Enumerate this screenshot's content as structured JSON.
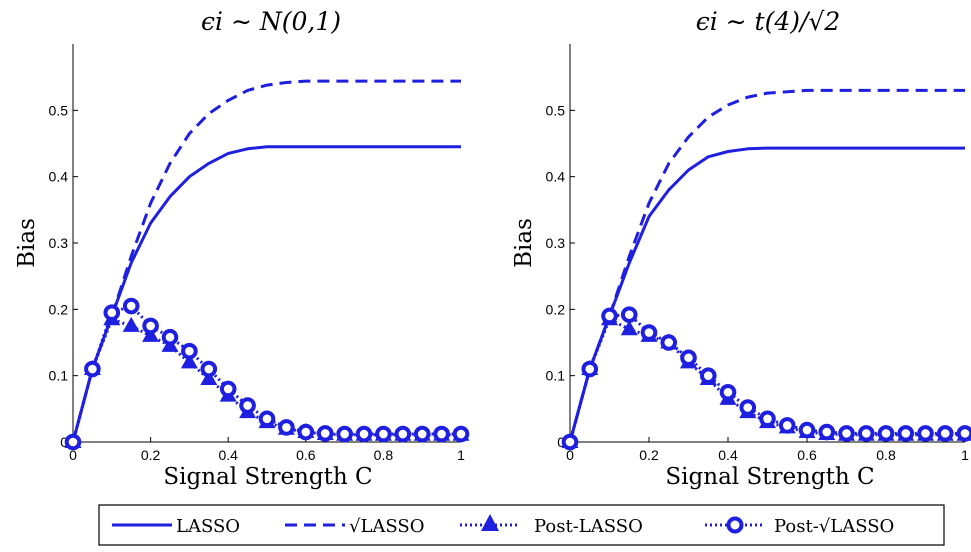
{
  "chart_data": [
    {
      "type": "line",
      "title": "ϵi ∼ N(0,1)",
      "xlabel": "Signal Strength C",
      "ylabel": "Bias",
      "xlim": [
        0,
        1
      ],
      "ylim": [
        0,
        0.6
      ],
      "x_ticks": [
        0,
        0.2,
        0.4,
        0.6,
        0.8,
        1
      ],
      "y_ticks": [
        0,
        0.1,
        0.2,
        0.3,
        0.4,
        0.5
      ],
      "x": [
        0,
        0.05,
        0.1,
        0.15,
        0.2,
        0.25,
        0.3,
        0.35,
        0.4,
        0.45,
        0.5,
        0.55,
        0.6,
        0.65,
        0.7,
        0.75,
        0.8,
        0.85,
        0.9,
        0.95,
        1
      ],
      "series": [
        {
          "name": "LASSO",
          "values": [
            0,
            0.11,
            0.19,
            0.27,
            0.33,
            0.37,
            0.4,
            0.42,
            0.435,
            0.442,
            0.445,
            0.445,
            0.445,
            0.445,
            0.445,
            0.445,
            0.445,
            0.445,
            0.445,
            0.445,
            0.445
          ]
        },
        {
          "name": "√LASSO",
          "values": [
            0,
            0.11,
            0.19,
            0.28,
            0.36,
            0.42,
            0.465,
            0.495,
            0.515,
            0.53,
            0.538,
            0.542,
            0.544,
            0.544,
            0.544,
            0.544,
            0.544,
            0.544,
            0.544,
            0.544,
            0.544
          ]
        },
        {
          "name": "Post-LASSO",
          "values": [
            0,
            0.11,
            0.185,
            0.175,
            0.16,
            0.145,
            0.12,
            0.095,
            0.07,
            0.045,
            0.03,
            0.02,
            0.015,
            0.012,
            0.011,
            0.011,
            0.011,
            0.011,
            0.011,
            0.011,
            0.011
          ]
        },
        {
          "name": "Post-√LASSO",
          "values": [
            0,
            0.11,
            0.195,
            0.205,
            0.175,
            0.158,
            0.137,
            0.11,
            0.08,
            0.055,
            0.035,
            0.022,
            0.015,
            0.013,
            0.012,
            0.012,
            0.012,
            0.012,
            0.012,
            0.012,
            0.012
          ]
        }
      ]
    },
    {
      "type": "line",
      "title": "ϵi ∼ t(4)/√2",
      "xlabel": "Signal Strength C",
      "ylabel": "Bias",
      "xlim": [
        0,
        1
      ],
      "ylim": [
        0,
        0.6
      ],
      "x_ticks": [
        0,
        0.2,
        0.4,
        0.6,
        0.8,
        1
      ],
      "y_ticks": [
        0,
        0.1,
        0.2,
        0.3,
        0.4,
        0.5
      ],
      "x": [
        0,
        0.05,
        0.1,
        0.15,
        0.2,
        0.25,
        0.3,
        0.35,
        0.4,
        0.45,
        0.5,
        0.55,
        0.6,
        0.65,
        0.7,
        0.75,
        0.8,
        0.85,
        0.9,
        0.95,
        1
      ],
      "series": [
        {
          "name": "LASSO",
          "values": [
            0,
            0.11,
            0.19,
            0.27,
            0.34,
            0.38,
            0.41,
            0.43,
            0.438,
            0.442,
            0.443,
            0.443,
            0.443,
            0.443,
            0.443,
            0.443,
            0.443,
            0.443,
            0.443,
            0.443,
            0.443
          ]
        },
        {
          "name": "√LASSO",
          "values": [
            0,
            0.11,
            0.19,
            0.28,
            0.36,
            0.42,
            0.46,
            0.49,
            0.508,
            0.52,
            0.526,
            0.528,
            0.53,
            0.53,
            0.53,
            0.53,
            0.53,
            0.53,
            0.53,
            0.53,
            0.53
          ]
        },
        {
          "name": "Post-LASSO",
          "values": [
            0,
            0.11,
            0.185,
            0.17,
            0.16,
            0.15,
            0.12,
            0.095,
            0.065,
            0.045,
            0.03,
            0.022,
            0.015,
            0.012,
            0.011,
            0.011,
            0.011,
            0.011,
            0.011,
            0.011,
            0.011
          ]
        },
        {
          "name": "Post-√LASSO",
          "values": [
            0,
            0.11,
            0.19,
            0.192,
            0.165,
            0.15,
            0.127,
            0.1,
            0.075,
            0.052,
            0.035,
            0.025,
            0.018,
            0.015,
            0.013,
            0.013,
            0.013,
            0.013,
            0.013,
            0.013,
            0.013
          ]
        }
      ]
    }
  ],
  "legend": {
    "placement": "bottom",
    "items": [
      {
        "label": "LASSO",
        "style": "solid"
      },
      {
        "label": "√LASSO",
        "style": "dashed"
      },
      {
        "label": "Post-LASSO",
        "style": "triangle"
      },
      {
        "label": "Post-√LASSO",
        "style": "circle"
      }
    ]
  },
  "colors": {
    "series": "#1f1fe0",
    "axis": "#000000",
    "background": "#ffffff"
  }
}
